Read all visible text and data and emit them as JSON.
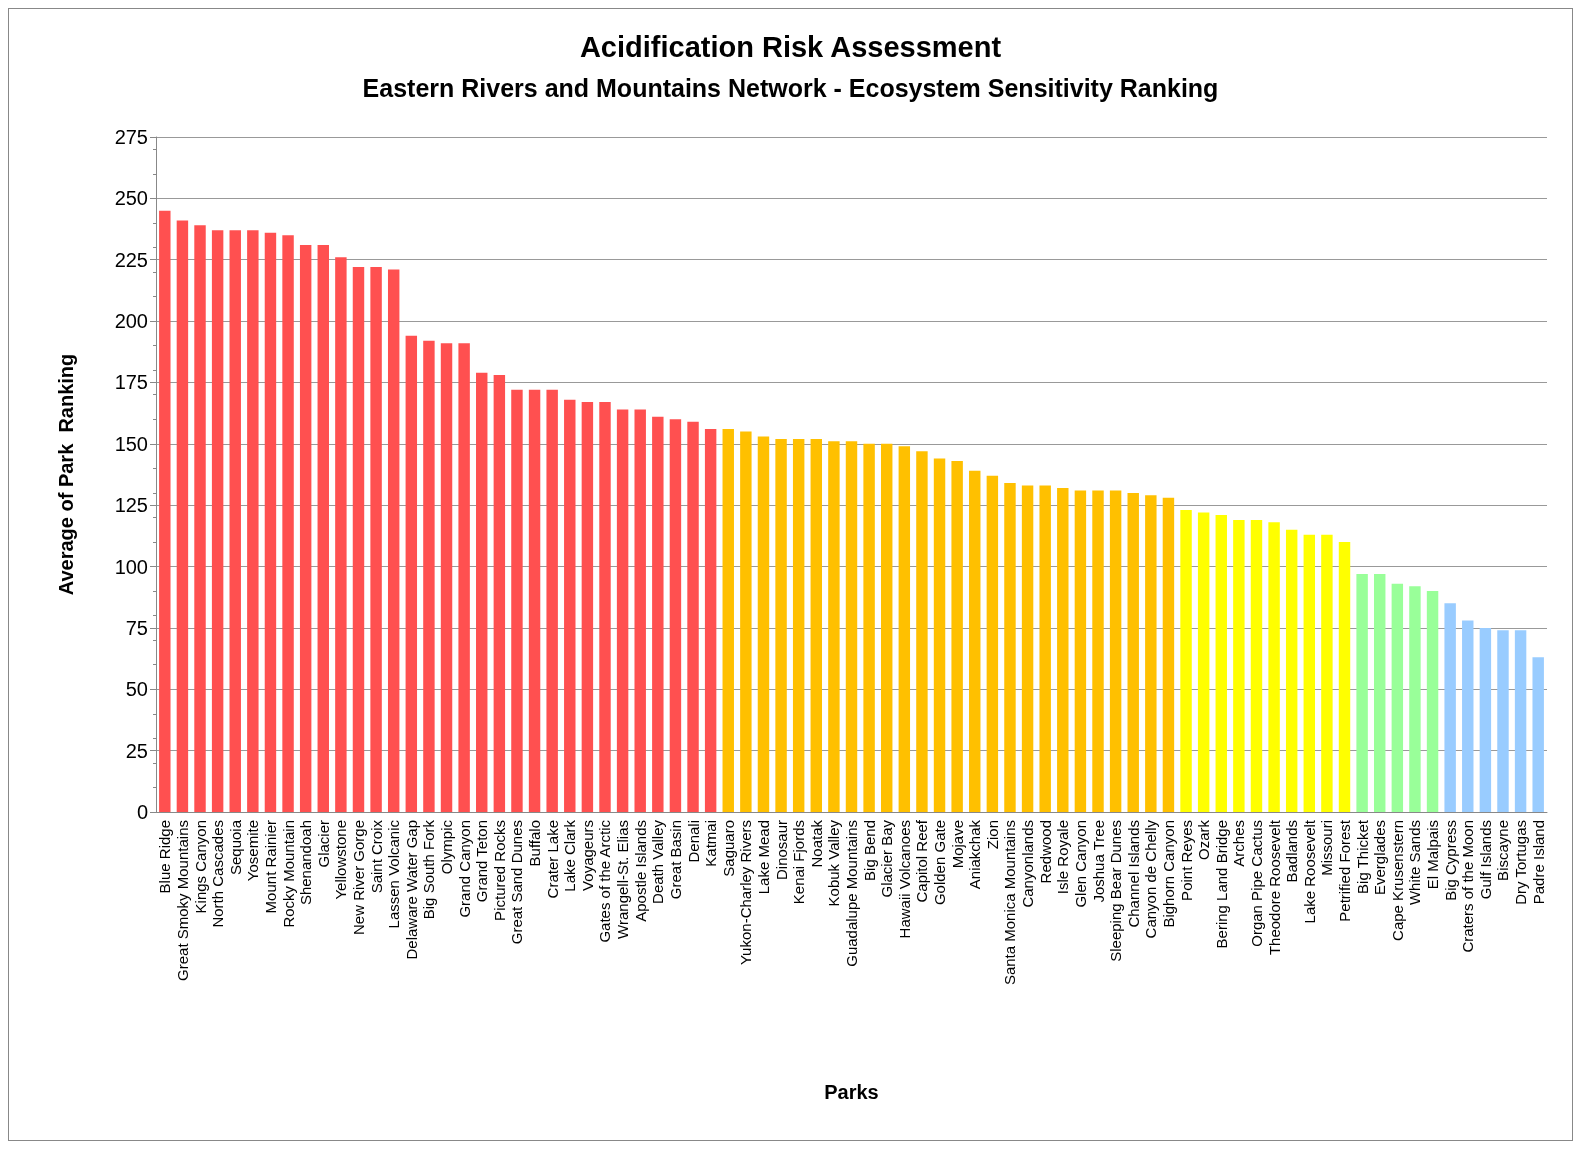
{
  "chart_data": {
    "type": "bar",
    "title": "Acidification Risk Assessment",
    "subtitle": "Eastern Rivers and Mountains Network - Ecosystem Sensitivity Ranking",
    "xlabel": "Parks",
    "ylabel": "Average of Park  Ranking",
    "categories": [
      "Blue Ridge",
      "Great Smoky Mountains",
      "Kings Canyon",
      "North Cascades",
      "Sequoia",
      "Yosemite",
      "Mount Rainier",
      "Rocky Mountain",
      "Shenandoah",
      "Glacier",
      "Yellowstone",
      "New River Gorge",
      "Saint Croix",
      "Lassen Volcanic",
      "Delaware Water Gap",
      "Big South Fork",
      "Olympic",
      "Grand Canyon",
      "Grand Teton",
      "Pictured Rocks",
      "Great Sand Dunes",
      "Buffalo",
      "Crater Lake",
      "Lake Clark",
      "Voyageurs",
      "Gates of the Arctic",
      "Wrangell-St. Elias",
      "Apostle Islands",
      "Death Valley",
      "Great Basin",
      "Denali",
      "Katmai",
      "Saguaro",
      "Yukon-Charley Rivers",
      "Lake Mead",
      "Dinosaur",
      "Kenai Fjords",
      "Noatak",
      "Kobuk Valley",
      "Guadalupe Mountains",
      "Big Bend",
      "Glacier Bay",
      "Hawaii Volcanoes",
      "Capitol Reef",
      "Golden Gate",
      "Mojave",
      "Aniakchak",
      "Zion",
      "Santa Monica Mountains",
      "Canyonlands",
      "Redwood",
      "Isle Royale",
      "Glen Canyon",
      "Joshua Tree",
      "Sleeping Bear Dunes",
      "Channel Islands",
      "Canyon de Chelly",
      "Bighorn Canyon",
      "Point Reyes",
      "Ozark",
      "Bering Land Bridge",
      "Arches",
      "Organ Pipe Cactus",
      "Theodore Roosevelt",
      "Badlands",
      "Lake Roosevelt",
      "Missouri",
      "Petrified Forest",
      "Big Thicket",
      "Everglades",
      "Cape Krusenstern",
      "White Sands",
      "El Malpais",
      "Big Cypress",
      "Craters of the Moon",
      "Gulf Islands",
      "Biscayne",
      "Dry Tortugas",
      "Padre Island"
    ],
    "values": [
      245,
      241,
      239,
      237,
      237,
      237,
      236,
      235,
      231,
      231,
      226,
      222,
      222,
      221,
      194,
      192,
      191,
      191,
      179,
      178,
      172,
      172,
      172,
      168,
      167,
      167,
      164,
      164,
      161,
      160,
      159,
      156,
      156,
      155,
      153,
      152,
      152,
      152,
      151,
      151,
      150,
      150,
      149,
      147,
      144,
      143,
      139,
      137,
      134,
      133,
      133,
      132,
      131,
      131,
      131,
      130,
      129,
      128,
      123,
      122,
      121,
      119,
      119,
      118,
      115,
      113,
      113,
      110,
      97,
      97,
      93,
      92,
      90,
      85,
      78,
      75,
      74,
      74,
      63
    ],
    "colors": [
      "#ff5050",
      "#ff5050",
      "#ff5050",
      "#ff5050",
      "#ff5050",
      "#ff5050",
      "#ff5050",
      "#ff5050",
      "#ff5050",
      "#ff5050",
      "#ff5050",
      "#ff5050",
      "#ff5050",
      "#ff5050",
      "#ff5050",
      "#ff5050",
      "#ff5050",
      "#ff5050",
      "#ff5050",
      "#ff5050",
      "#ff5050",
      "#ff5050",
      "#ff5050",
      "#ff5050",
      "#ff5050",
      "#ff5050",
      "#ff5050",
      "#ff5050",
      "#ff5050",
      "#ff5050",
      "#ff5050",
      "#ff5050",
      "#ffc000",
      "#ffc000",
      "#ffc000",
      "#ffc000",
      "#ffc000",
      "#ffc000",
      "#ffc000",
      "#ffc000",
      "#ffc000",
      "#ffc000",
      "#ffc000",
      "#ffc000",
      "#ffc000",
      "#ffc000",
      "#ffc000",
      "#ffc000",
      "#ffc000",
      "#ffc000",
      "#ffc000",
      "#ffc000",
      "#ffc000",
      "#ffc000",
      "#ffc000",
      "#ffc000",
      "#ffc000",
      "#ffc000",
      "#ffff00",
      "#ffff00",
      "#ffff00",
      "#ffff00",
      "#ffff00",
      "#ffff00",
      "#ffff00",
      "#ffff00",
      "#ffff00",
      "#ffff00",
      "#99ff99",
      "#99ff99",
      "#99ff99",
      "#99ff99",
      "#99ff99",
      "#99ccff",
      "#99ccff",
      "#99ccff",
      "#99ccff",
      "#99ccff",
      "#99ccff"
    ],
    "ylim": [
      0,
      275
    ],
    "yticks": [
      0,
      25,
      50,
      75,
      100,
      125,
      150,
      175,
      200,
      225,
      250,
      275
    ],
    "grid": "y"
  }
}
